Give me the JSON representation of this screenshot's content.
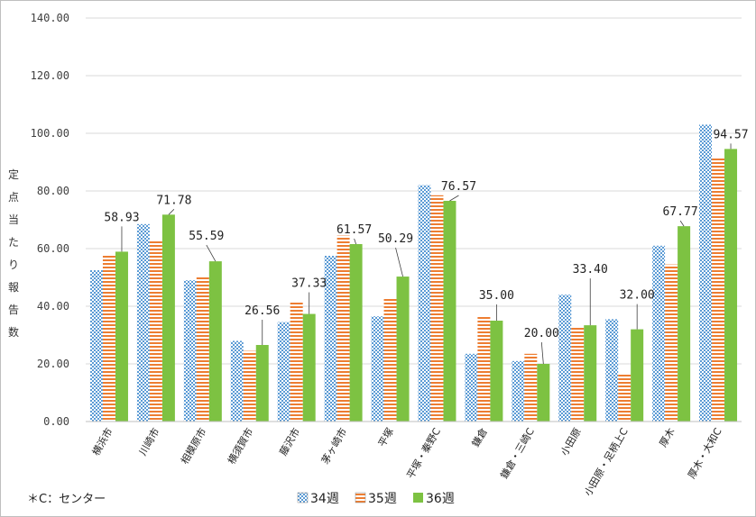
{
  "chart_data": {
    "type": "bar",
    "ylabel": "定点当たり報告数",
    "ylim": [
      0,
      140
    ],
    "yticks": [
      "0.00",
      "20.00",
      "40.00",
      "60.00",
      "80.00",
      "100.00",
      "120.00",
      "140.00"
    ],
    "grid": true,
    "legend_position": "bottom",
    "categories": [
      "横浜市",
      "川崎市",
      "相模原市",
      "横須賀市",
      "藤沢市",
      "茅ヶ崎市",
      "平塚",
      "平塚・秦野C",
      "鎌倉",
      "鎌倉・三崎C",
      "小田原",
      "小田原・足柄上C",
      "厚木",
      "厚木・大和C"
    ],
    "series": [
      {
        "name": "34週",
        "color": "#9dc3e6",
        "pattern": "checker",
        "values": [
          52.5,
          68.5,
          49.0,
          28.0,
          34.5,
          57.5,
          36.5,
          82.0,
          23.5,
          21.0,
          44.0,
          35.5,
          61.0,
          103.0
        ]
      },
      {
        "name": "35週",
        "color": "#ed7d31",
        "pattern": "hstripes",
        "values": [
          58.0,
          62.5,
          50.0,
          24.5,
          41.5,
          64.5,
          42.5,
          78.5,
          36.5,
          23.5,
          33.0,
          16.5,
          54.5,
          91.5
        ]
      },
      {
        "name": "36週",
        "color": "#7dc242",
        "pattern": "solid",
        "values": [
          58.93,
          71.78,
          55.59,
          26.56,
          37.33,
          61.57,
          50.29,
          76.57,
          35.0,
          20.0,
          33.4,
          32.0,
          67.77,
          94.57
        ]
      }
    ],
    "data_labels": [
      "58.93",
      "71.78",
      "55.59",
      "26.56",
      "37.33",
      "61.57",
      "50.29",
      "76.57",
      "35.00",
      "20.00",
      "33.40",
      "32.00",
      "67.77",
      "94.57"
    ]
  },
  "footnote": "＊C：センター"
}
